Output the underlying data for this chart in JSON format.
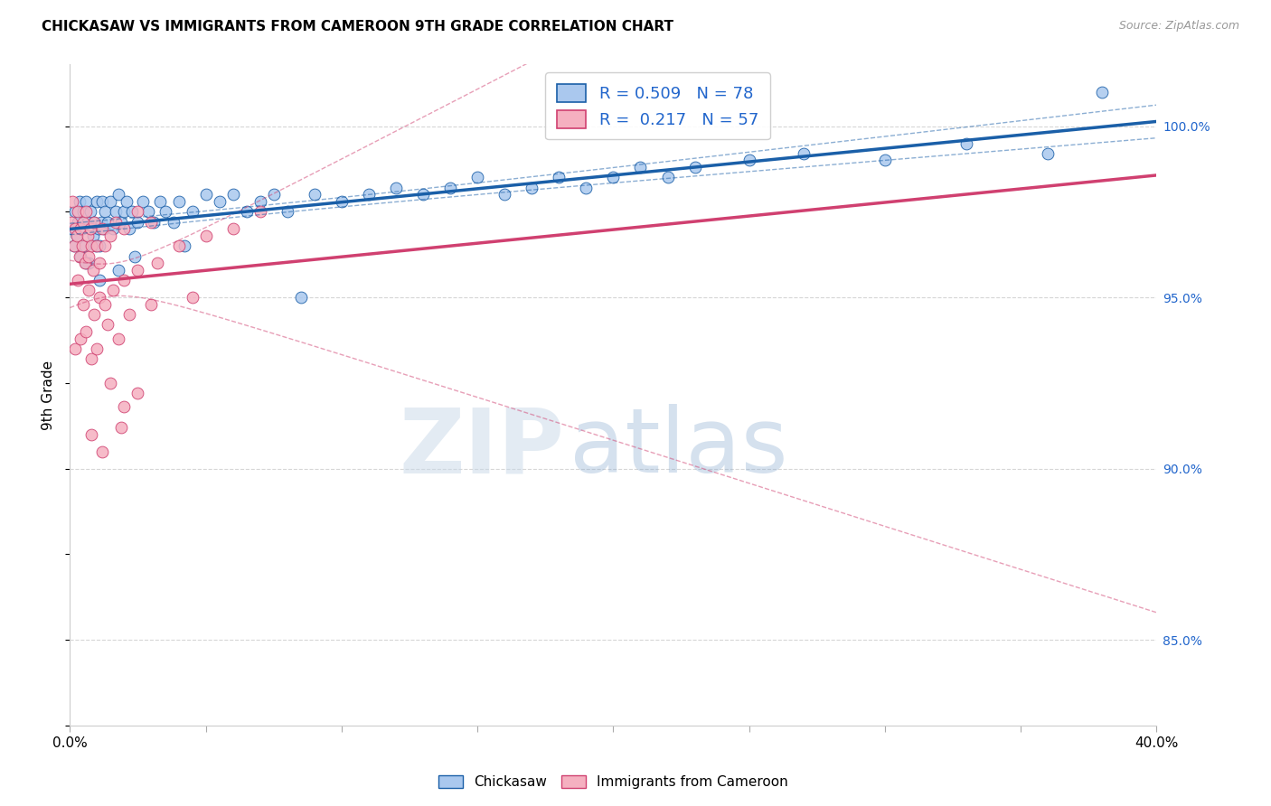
{
  "title": "CHICKASAW VS IMMIGRANTS FROM CAMEROON 9TH GRADE CORRELATION CHART",
  "source": "Source: ZipAtlas.com",
  "ylabel": "9th Grade",
  "x_min": 0.0,
  "x_max": 40.0,
  "y_min": 82.5,
  "y_max": 101.8,
  "blue_R": 0.509,
  "blue_N": 78,
  "pink_R": 0.217,
  "pink_N": 57,
  "blue_color": "#aac8ee",
  "blue_line_color": "#1a5fa8",
  "pink_color": "#f5b0c0",
  "pink_line_color": "#d04070",
  "legend_label_blue": "Chickasaw",
  "legend_label_pink": "Immigrants from Cameroon",
  "blue_x": [
    0.1,
    0.15,
    0.2,
    0.25,
    0.3,
    0.35,
    0.4,
    0.45,
    0.5,
    0.55,
    0.6,
    0.65,
    0.7,
    0.75,
    0.8,
    0.85,
    0.9,
    0.95,
    1.0,
    1.05,
    1.1,
    1.15,
    1.2,
    1.25,
    1.3,
    1.4,
    1.5,
    1.6,
    1.7,
    1.8,
    1.9,
    2.0,
    2.1,
    2.2,
    2.3,
    2.5,
    2.7,
    2.9,
    3.1,
    3.3,
    3.5,
    3.8,
    4.0,
    4.5,
    5.0,
    5.5,
    6.0,
    6.5,
    7.0,
    7.5,
    8.0,
    9.0,
    10.0,
    11.0,
    12.0,
    13.0,
    14.0,
    15.0,
    16.0,
    17.0,
    18.0,
    19.0,
    20.0,
    21.0,
    22.0,
    23.0,
    25.0,
    27.0,
    30.0,
    33.0,
    36.0,
    38.0,
    0.6,
    1.1,
    1.8,
    2.4,
    4.2,
    8.5
  ],
  "blue_y": [
    97.0,
    96.5,
    97.5,
    96.8,
    97.2,
    97.8,
    96.2,
    97.0,
    97.5,
    96.5,
    97.8,
    97.2,
    96.0,
    97.5,
    97.0,
    96.8,
    97.2,
    96.5,
    97.8,
    97.0,
    96.5,
    97.2,
    97.8,
    97.0,
    97.5,
    97.2,
    97.8,
    97.0,
    97.5,
    98.0,
    97.2,
    97.5,
    97.8,
    97.0,
    97.5,
    97.2,
    97.8,
    97.5,
    97.2,
    97.8,
    97.5,
    97.2,
    97.8,
    97.5,
    98.0,
    97.8,
    98.0,
    97.5,
    97.8,
    98.0,
    97.5,
    98.0,
    97.8,
    98.0,
    98.2,
    98.0,
    98.2,
    98.5,
    98.0,
    98.2,
    98.5,
    98.2,
    98.5,
    98.8,
    98.5,
    98.8,
    99.0,
    99.2,
    99.0,
    99.5,
    99.2,
    101.0,
    96.0,
    95.5,
    95.8,
    96.2,
    96.5,
    95.0
  ],
  "pink_x": [
    0.05,
    0.1,
    0.15,
    0.2,
    0.25,
    0.3,
    0.35,
    0.4,
    0.45,
    0.5,
    0.55,
    0.6,
    0.65,
    0.7,
    0.75,
    0.8,
    0.85,
    0.9,
    1.0,
    1.1,
    1.2,
    1.3,
    1.5,
    1.7,
    2.0,
    2.5,
    3.0,
    0.3,
    0.5,
    0.7,
    0.9,
    1.1,
    1.3,
    1.6,
    2.0,
    2.5,
    3.2,
    4.0,
    5.0,
    6.0,
    7.0,
    0.2,
    0.4,
    0.6,
    0.8,
    1.0,
    1.4,
    1.8,
    2.2,
    3.0,
    4.5,
    1.5,
    2.0,
    2.5,
    0.8,
    1.2,
    1.9
  ],
  "pink_y": [
    97.2,
    97.8,
    96.5,
    97.0,
    96.8,
    97.5,
    96.2,
    97.0,
    96.5,
    97.2,
    96.0,
    97.5,
    96.8,
    96.2,
    97.0,
    96.5,
    95.8,
    97.2,
    96.5,
    96.0,
    97.0,
    96.5,
    96.8,
    97.2,
    97.0,
    97.5,
    97.2,
    95.5,
    94.8,
    95.2,
    94.5,
    95.0,
    94.8,
    95.2,
    95.5,
    95.8,
    96.0,
    96.5,
    96.8,
    97.0,
    97.5,
    93.5,
    93.8,
    94.0,
    93.2,
    93.5,
    94.2,
    93.8,
    94.5,
    94.8,
    95.0,
    92.5,
    91.8,
    92.2,
    91.0,
    90.5,
    91.2
  ]
}
